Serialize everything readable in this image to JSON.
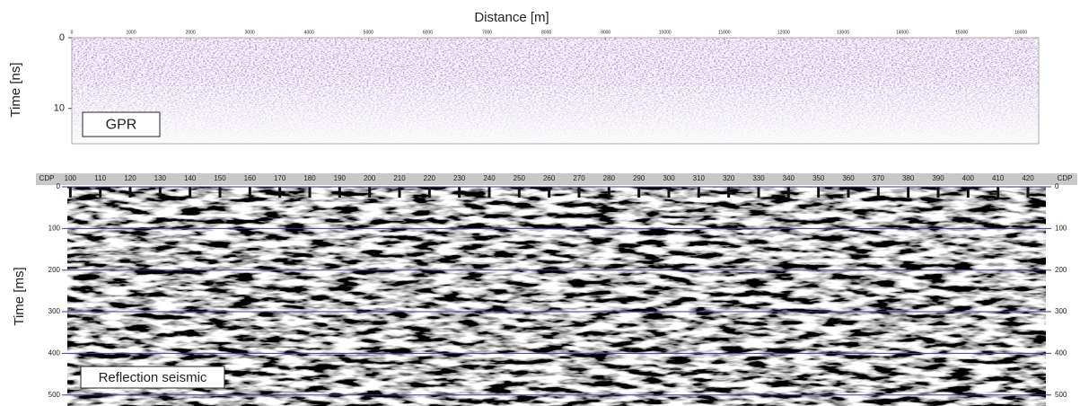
{
  "chart_data": [
    {
      "type": "section",
      "title": "Distance [m]",
      "y_label": "Time [ns]",
      "label": "GPR",
      "xlim": [
        0,
        16300
      ],
      "xticks": [
        0,
        1000,
        2000,
        3000,
        4000,
        5000,
        6000,
        7000,
        8000,
        9000,
        10000,
        11000,
        12000,
        13000,
        14000,
        15000,
        16000
      ],
      "ylim": [
        0,
        15
      ],
      "yticks": [
        0,
        10
      ],
      "color": "#6a3db8",
      "grid": false
    },
    {
      "type": "section",
      "x_label": "CDP",
      "y_label": "Time [ms]",
      "label": "Reflection seismic",
      "xlim": [
        99,
        426
      ],
      "xticks": [
        100,
        110,
        120,
        130,
        140,
        150,
        160,
        170,
        180,
        190,
        200,
        210,
        220,
        230,
        240,
        250,
        260,
        270,
        280,
        290,
        300,
        310,
        320,
        330,
        340,
        350,
        360,
        370,
        380,
        390,
        400,
        410,
        420
      ],
      "ylim": [
        0,
        520
      ],
      "yticks": [
        0,
        100,
        200,
        300,
        400,
        500
      ],
      "color": "#3a3aa8",
      "grid": true
    }
  ]
}
